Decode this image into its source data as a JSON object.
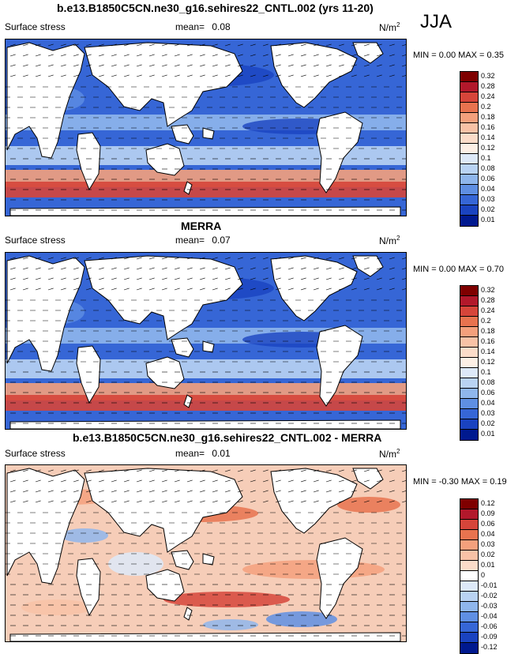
{
  "season": "JJA",
  "panels": [
    {
      "title": "b.e13.B1850C5CN.ne30_g16.sehires22_CNTL.002 (yrs 11-20)",
      "variable": "Surface stress",
      "mean_label": "mean=",
      "mean": "0.08",
      "units": "N/m",
      "units_sup": "2",
      "minmax": "MIN =  0.00 MAX =  0.35",
      "colorbar": [
        "0.32",
        "0.28",
        "0.24",
        "0.2",
        "0.18",
        "0.16",
        "0.14",
        "0.12",
        "0.1",
        "0.08",
        "0.06",
        "0.04",
        "0.03",
        "0.02",
        "0.01"
      ]
    },
    {
      "title": "MERRA",
      "variable": "Surface stress",
      "mean_label": "mean=",
      "mean": "0.07",
      "units": "N/m",
      "units_sup": "2",
      "minmax": "MIN =  0.00 MAX =  0.70",
      "colorbar": [
        "0.32",
        "0.28",
        "0.24",
        "0.2",
        "0.18",
        "0.16",
        "0.14",
        "0.12",
        "0.1",
        "0.08",
        "0.06",
        "0.04",
        "0.03",
        "0.02",
        "0.01"
      ]
    },
    {
      "title": "b.e13.B1850C5CN.ne30_g16.sehires22_CNTL.002 - MERRA",
      "variable": "Surface stress",
      "mean_label": "mean=",
      "mean": "0.01",
      "units": "N/m",
      "units_sup": "2",
      "minmax": "MIN = -0.30 MAX =  0.19",
      "colorbar": [
        "0.12",
        "0.09",
        "0.06",
        "0.04",
        "0.03",
        "0.02",
        "0.01",
        "0",
        "-0.01",
        "-0.02",
        "-0.03",
        "-0.04",
        "-0.06",
        "-0.09",
        "-0.12"
      ]
    }
  ],
  "colors": {
    "seq": [
      "#7f0000",
      "#b2182b",
      "#d6453a",
      "#e8734f",
      "#f4a07c",
      "#f8c2a6",
      "#fbdcc9",
      "#fdf0e6",
      "#dde9f8",
      "#b9d3f3",
      "#8fb6ec",
      "#5f8fe3",
      "#3666d6",
      "#1a43c0",
      "#00198f"
    ],
    "div": [
      "#7f0000",
      "#b2182b",
      "#d6453a",
      "#e8734f",
      "#f4a07c",
      "#f8c2a6",
      "#fbdcc9",
      "#ffffff",
      "#dde9f8",
      "#b9d3f3",
      "#8fb6ec",
      "#5f8fe3",
      "#3666d6",
      "#1a43c0",
      "#00198f"
    ]
  }
}
